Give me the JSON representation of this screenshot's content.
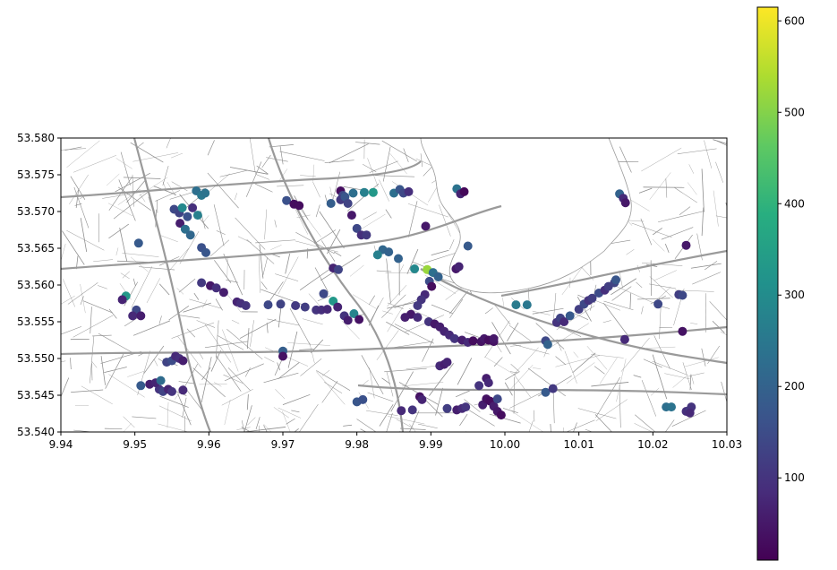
{
  "chart_data": {
    "type": "scatter",
    "background": "street map (grey road network, white lake area)",
    "xlim": [
      9.94,
      10.03
    ],
    "ylim": [
      53.54,
      53.58
    ],
    "x_ticks": [
      "9.94",
      "9.95",
      "9.96",
      "9.97",
      "9.98",
      "9.99",
      "10.00",
      "10.01",
      "10.02",
      "10.03"
    ],
    "y_ticks": [
      "53.540",
      "53.545",
      "53.550",
      "53.555",
      "53.560",
      "53.565",
      "53.570",
      "53.575",
      "53.580"
    ],
    "colorbar": {
      "colormap": "viridis",
      "range": [
        10,
        615
      ],
      "ticks": [
        "100",
        "200",
        "300",
        "400",
        "500",
        "600"
      ],
      "tick_values": [
        100,
        200,
        300,
        400,
        500,
        600
      ]
    },
    "map_colors": {
      "road": "#8c8c8c",
      "major_road": "#9a9a9a",
      "water": "#ffffff",
      "frame": "#000000"
    },
    "points": [
      [
        9.9553,
        53.5703,
        140
      ],
      [
        9.956,
        53.5698,
        130
      ],
      [
        9.9571,
        53.5693,
        160
      ],
      [
        9.9578,
        53.5705,
        90
      ],
      [
        9.9583,
        53.5728,
        230
      ],
      [
        9.959,
        53.5722,
        250
      ],
      [
        9.9595,
        53.5725,
        240
      ],
      [
        9.9585,
        53.5695,
        270
      ],
      [
        9.9564,
        53.5705,
        290
      ],
      [
        9.9561,
        53.5684,
        60
      ],
      [
        9.9568,
        53.5676,
        230
      ],
      [
        9.9575,
        53.5668,
        210
      ],
      [
        9.959,
        53.5651,
        160
      ],
      [
        9.9596,
        53.5644,
        170
      ],
      [
        9.9505,
        53.5657,
        180
      ],
      [
        9.9488,
        53.5585,
        330
      ],
      [
        9.9483,
        53.558,
        70
      ],
      [
        9.9502,
        53.5566,
        140
      ],
      [
        9.9497,
        53.5558,
        80
      ],
      [
        9.9508,
        53.5558,
        60
      ],
      [
        9.959,
        53.5603,
        110
      ],
      [
        9.9602,
        53.5599,
        50
      ],
      [
        9.961,
        53.5596,
        90
      ],
      [
        9.962,
        53.559,
        60
      ],
      [
        9.9638,
        53.5577,
        70
      ],
      [
        9.9643,
        53.5575,
        90
      ],
      [
        9.965,
        53.5572,
        100
      ],
      [
        9.968,
        53.5573,
        140
      ],
      [
        9.9697,
        53.5574,
        130
      ],
      [
        9.9717,
        53.5572,
        110
      ],
      [
        9.973,
        53.557,
        120
      ],
      [
        9.9745,
        53.5566,
        100
      ],
      [
        9.9752,
        53.5566,
        90
      ],
      [
        9.976,
        53.5567,
        80
      ],
      [
        9.9768,
        53.5578,
        330
      ],
      [
        9.9774,
        53.557,
        70
      ],
      [
        9.9783,
        53.5558,
        100
      ],
      [
        9.9788,
        53.5552,
        60
      ],
      [
        9.9796,
        53.5561,
        280
      ],
      [
        9.9803,
        53.5553,
        40
      ],
      [
        9.9755,
        53.5588,
        140
      ],
      [
        9.9768,
        53.5623,
        70
      ],
      [
        9.9775,
        53.5621,
        130
      ],
      [
        9.9705,
        53.5715,
        160
      ],
      [
        9.9715,
        53.571,
        30
      ],
      [
        9.9722,
        53.5708,
        30
      ],
      [
        9.9765,
        53.5711,
        190
      ],
      [
        9.9778,
        53.5728,
        30
      ],
      [
        9.9781,
        53.5722,
        140
      ],
      [
        9.9778,
        53.5716,
        110
      ],
      [
        9.9784,
        53.572,
        170
      ],
      [
        9.9788,
        53.5711,
        130
      ],
      [
        9.9795,
        53.5725,
        230
      ],
      [
        9.9793,
        53.5695,
        50
      ],
      [
        9.98,
        53.5677,
        140
      ],
      [
        9.9806,
        53.5668,
        90
      ],
      [
        9.9813,
        53.5668,
        110
      ],
      [
        9.981,
        53.5726,
        270
      ],
      [
        9.9822,
        53.5726,
        330
      ],
      [
        9.985,
        53.5725,
        230
      ],
      [
        9.9858,
        53.573,
        170
      ],
      [
        9.9863,
        53.5725,
        140
      ],
      [
        9.987,
        53.5727,
        90
      ],
      [
        9.9835,
        53.5648,
        210
      ],
      [
        9.9828,
        53.5641,
        270
      ],
      [
        9.9843,
        53.5645,
        200
      ],
      [
        9.9856,
        53.5636,
        200
      ],
      [
        9.9878,
        53.5622,
        290
      ],
      [
        9.9895,
        53.5621,
        520
      ],
      [
        9.9903,
        53.5617,
        230
      ],
      [
        9.991,
        53.5611,
        200
      ],
      [
        9.9893,
        53.568,
        50
      ],
      [
        9.9935,
        53.5731,
        240
      ],
      [
        9.994,
        53.5724,
        70
      ],
      [
        9.9945,
        53.5727,
        20
      ],
      [
        9.995,
        53.5653,
        180
      ],
      [
        9.9934,
        53.5622,
        50
      ],
      [
        9.9938,
        53.5625,
        70
      ],
      [
        9.9898,
        53.5605,
        150
      ],
      [
        9.9901,
        53.5598,
        30
      ],
      [
        9.9892,
        53.5587,
        80
      ],
      [
        9.9887,
        53.558,
        100
      ],
      [
        9.9882,
        53.5572,
        110
      ],
      [
        9.9873,
        53.556,
        50
      ],
      [
        9.9865,
        53.5556,
        60
      ],
      [
        9.9882,
        53.5556,
        80
      ],
      [
        9.9897,
        53.555,
        100
      ],
      [
        9.9905,
        53.5547,
        50
      ],
      [
        9.9912,
        53.5543,
        60
      ],
      [
        9.9918,
        53.5537,
        70
      ],
      [
        9.9925,
        53.5532,
        80
      ],
      [
        9.9932,
        53.5527,
        100
      ],
      [
        9.9942,
        53.5525,
        60
      ],
      [
        9.995,
        53.5522,
        80
      ],
      [
        9.9957,
        53.5524,
        30
      ],
      [
        9.9968,
        53.5523,
        40
      ],
      [
        9.9972,
        53.5527,
        50
      ],
      [
        9.9978,
        53.5525,
        30
      ],
      [
        9.9985,
        53.5523,
        40
      ],
      [
        9.9985,
        53.5527,
        50
      ],
      [
        9.9912,
        53.549,
        80
      ],
      [
        9.9918,
        53.5492,
        60
      ],
      [
        9.9922,
        53.5495,
        70
      ],
      [
        9.9965,
        53.5463,
        100
      ],
      [
        9.9975,
        53.5473,
        60
      ],
      [
        9.9978,
        53.5467,
        80
      ],
      [
        9.9885,
        53.5448,
        40
      ],
      [
        9.9888,
        53.5444,
        70
      ],
      [
        9.986,
        53.5429,
        80
      ],
      [
        9.9875,
        53.543,
        100
      ],
      [
        9.9922,
        53.5432,
        120
      ],
      [
        9.9935,
        53.543,
        60
      ],
      [
        9.9942,
        53.5432,
        80
      ],
      [
        9.9947,
        53.5434,
        100
      ],
      [
        9.997,
        53.5437,
        60
      ],
      [
        9.9975,
        53.5445,
        40
      ],
      [
        9.998,
        53.5442,
        30
      ],
      [
        9.9985,
        53.5435,
        60
      ],
      [
        9.999,
        53.5428,
        50
      ],
      [
        9.9995,
        53.5423,
        30
      ],
      [
        9.999,
        53.5445,
        140
      ],
      [
        9.98,
        53.5441,
        170
      ],
      [
        9.9808,
        53.5444,
        160
      ],
      [
        10.0015,
        53.5573,
        260
      ],
      [
        10.003,
        53.5573,
        250
      ],
      [
        10.0055,
        53.5454,
        180
      ],
      [
        10.0065,
        53.5459,
        110
      ],
      [
        10.0055,
        53.5524,
        140
      ],
      [
        10.0058,
        53.5519,
        200
      ],
      [
        10.007,
        53.5549,
        100
      ],
      [
        10.0075,
        53.5555,
        130
      ],
      [
        10.008,
        53.555,
        80
      ],
      [
        10.0088,
        53.5558,
        180
      ],
      [
        10.01,
        53.5567,
        120
      ],
      [
        10.0107,
        53.5574,
        140
      ],
      [
        10.0113,
        53.5579,
        100
      ],
      [
        10.0118,
        53.5582,
        120
      ],
      [
        10.0127,
        53.5589,
        150
      ],
      [
        10.0135,
        53.5593,
        90
      ],
      [
        10.014,
        53.5598,
        120
      ],
      [
        10.0148,
        53.5603,
        130
      ],
      [
        10.015,
        53.5607,
        170
      ],
      [
        10.0155,
        53.5724,
        200
      ],
      [
        10.016,
        53.5718,
        80
      ],
      [
        10.0163,
        53.5712,
        50
      ],
      [
        10.0162,
        53.5526,
        80
      ],
      [
        10.0207,
        53.5574,
        140
      ],
      [
        10.0235,
        53.5587,
        120
      ],
      [
        10.024,
        53.5586,
        140
      ],
      [
        10.024,
        53.5537,
        40
      ],
      [
        10.0245,
        53.5654,
        50
      ],
      [
        10.0218,
        53.5434,
        230
      ],
      [
        10.0225,
        53.5434,
        240
      ],
      [
        10.0245,
        53.5428,
        90
      ],
      [
        10.025,
        53.543,
        120
      ],
      [
        10.0252,
        53.5434,
        100
      ],
      [
        10.025,
        53.5426,
        80
      ],
      [
        9.9508,
        53.5463,
        180
      ],
      [
        9.9533,
        53.5458,
        100
      ],
      [
        9.9538,
        53.5455,
        130
      ],
      [
        9.9545,
        53.5458,
        70
      ],
      [
        9.955,
        53.5455,
        100
      ],
      [
        9.9565,
        53.5457,
        80
      ],
      [
        9.952,
        53.5465,
        60
      ],
      [
        9.9528,
        53.5467,
        70
      ],
      [
        9.9535,
        53.547,
        220
      ],
      [
        9.9543,
        53.5495,
        130
      ],
      [
        9.955,
        53.5497,
        150
      ],
      [
        9.9555,
        53.5503,
        80
      ],
      [
        9.956,
        53.55,
        90
      ],
      [
        9.9565,
        53.5497,
        60
      ],
      [
        9.97,
        53.551,
        190
      ],
      [
        9.97,
        53.5503,
        40
      ]
    ]
  }
}
